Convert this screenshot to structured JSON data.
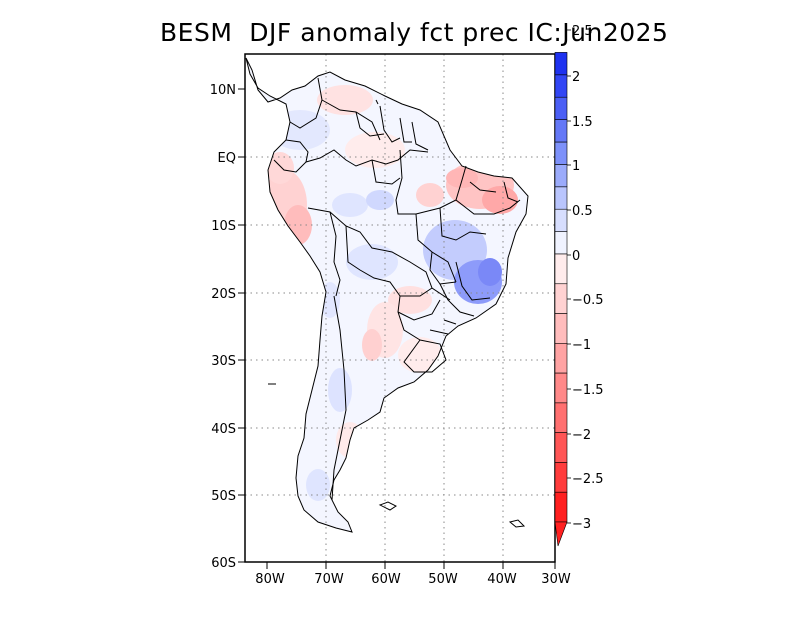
{
  "title": "BESM  DJF anomaly fct prec IC:Jun2025",
  "map": {
    "lat_labels": [
      "10N",
      "EQ",
      "10S",
      "20S",
      "30S",
      "40S",
      "50S",
      "60S"
    ],
    "lon_labels": [
      "80W",
      "70W",
      "60W",
      "50W",
      "40W",
      "30W"
    ],
    "region": "South America",
    "field": "precipitation anomaly forecast"
  },
  "colorbar": {
    "labels": [
      "2.5",
      "2",
      "1.5",
      "1",
      "0.5",
      "0",
      "-0.5",
      "-1",
      "-1.5",
      "-2",
      "-2.5",
      "-3"
    ],
    "blue_colors": [
      "#1e32f0",
      "#3246f5",
      "#4b5ff5",
      "#6478f7",
      "#7d91fa",
      "#9babfb",
      "#b9c5fd",
      "#d7defe",
      "#f0f3ff"
    ],
    "red_colors": [
      "#ffecec",
      "#ffd2d2",
      "#ffbcbc",
      "#ffa3a3",
      "#ff8989",
      "#ff7070",
      "#ff5656",
      "#ff3c3c",
      "#ff2020"
    ]
  }
}
